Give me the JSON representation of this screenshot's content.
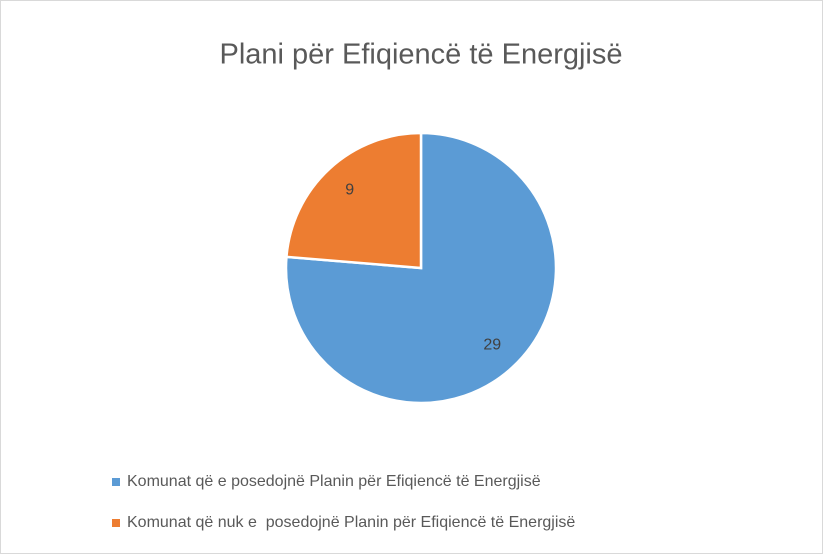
{
  "chart_data": {
    "type": "pie",
    "title": "Plani për Efiqiencë të Energjisë",
    "categories": [
      "Komunat që e posedojnë Planin për Efiqiencë të Energjisë",
      "Komunat që nuk e  posedojnë Planin për Efiqiencë të Energjisë"
    ],
    "values": [
      29,
      9
    ],
    "colors": [
      "#5b9bd5",
      "#ed7d31"
    ],
    "legend": "bottom"
  }
}
